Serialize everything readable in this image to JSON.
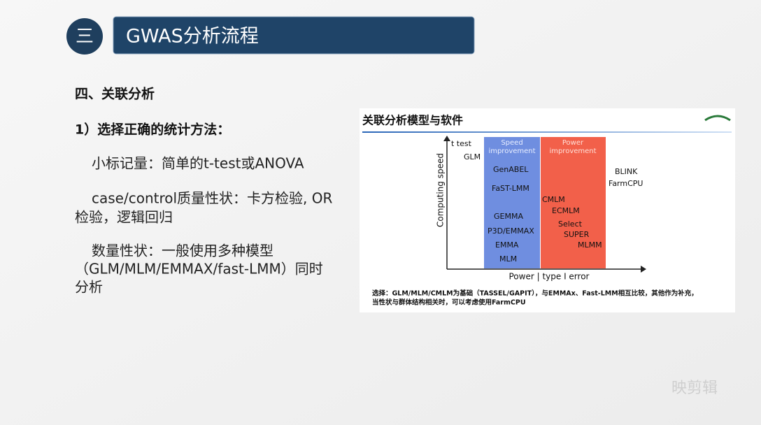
{
  "header": {
    "number": "三",
    "title": "GWAS分析流程"
  },
  "section": "四、关联分析",
  "subheading": "1）选择正确的统计方法：",
  "items": [
    {
      "lines": [
        "小标记量：简单的t-test或ANOVA"
      ]
    },
    {
      "lines": [
        "case/control质量性状：卡方检验, OR",
        "检验，逻辑回归"
      ]
    },
    {
      "lines": [
        "数量性状：一般使用多种模型",
        "（GLM/MLM/EMMAX/fast-LMM）同时",
        "分析"
      ]
    }
  ],
  "figure": {
    "title": "关联分析模型与软件",
    "y_label": "Computing speed",
    "x_label": "Power | type I error",
    "speed_box": [
      "Speed",
      "improvement"
    ],
    "power_box": [
      "Power",
      "improvement"
    ],
    "labels": [
      "t test",
      "GLM",
      "GenABEL",
      "FaST-LMM",
      "GEMMA",
      "P3D/EMMAX",
      "EMMA",
      "MLM",
      "CMLM",
      "ECMLM",
      "Select",
      "SUPER",
      "MLMM",
      "BLINK",
      "FarmCPU"
    ],
    "caption": [
      "选择：GLM/MLM/CMLM为基础（TASSEL/GAPIT），与EMMAx、Fast-LMM相互比较，其他作为补充，",
      "当性状与群体结构相关时，可以考虑使用FarmCPU"
    ]
  },
  "watermark": "映剪辑"
}
